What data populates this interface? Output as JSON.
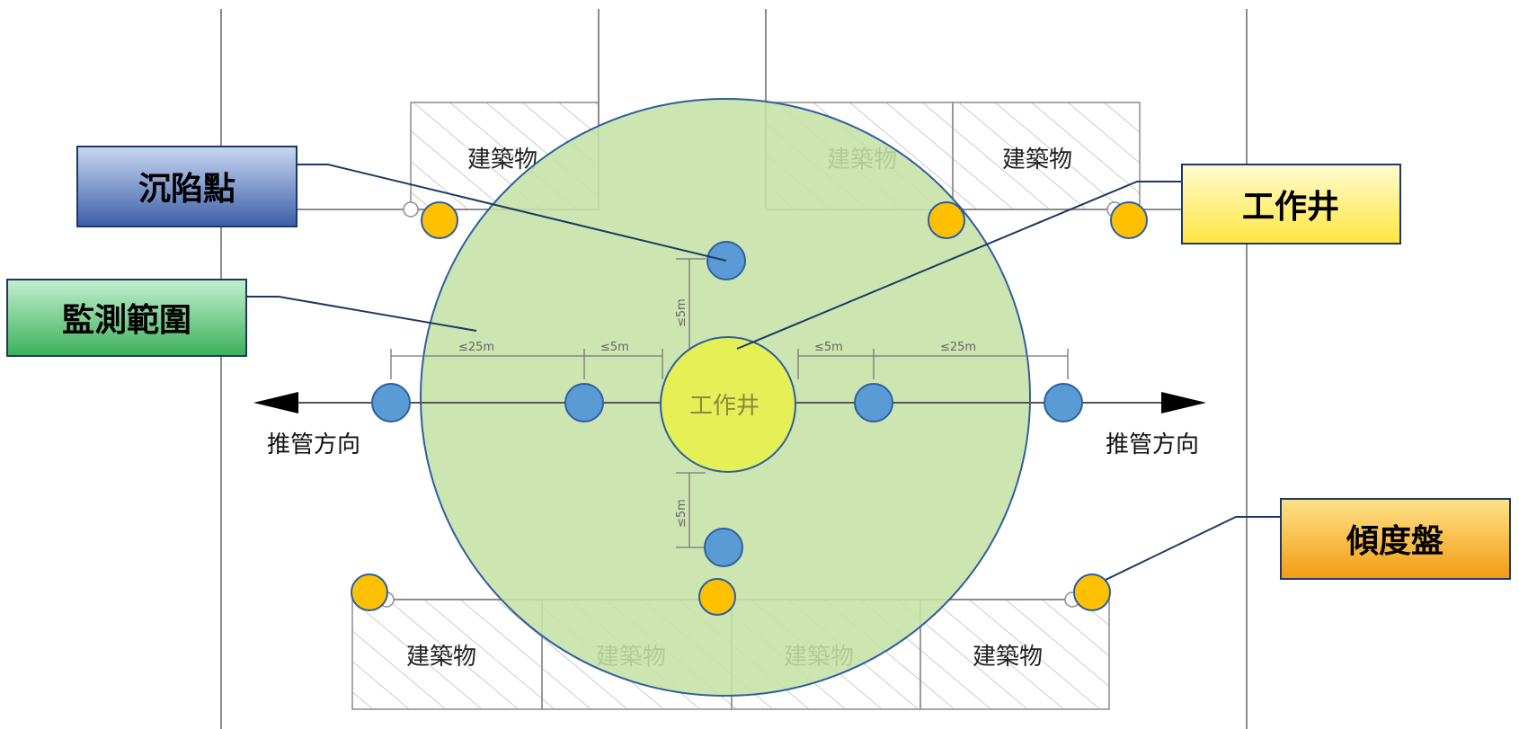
{
  "callouts": {
    "settlement_point": "沉陷點",
    "working_shaft": "工作井",
    "monitoring_range": "監測範圍",
    "tiltmeter": "傾度盤"
  },
  "drawing": {
    "building": "建築物",
    "jacking_direction": "推管方向",
    "shaft": "工作井",
    "dim_25m": "≤25m",
    "dim_5m": "≤5m"
  },
  "colors": {
    "monitoring_zone": "#c6e1a6",
    "shaft": "#e4f055",
    "settlement_point": "#5b9bd5",
    "tiltmeter": "#ffc000",
    "leader": "#1f3864"
  }
}
